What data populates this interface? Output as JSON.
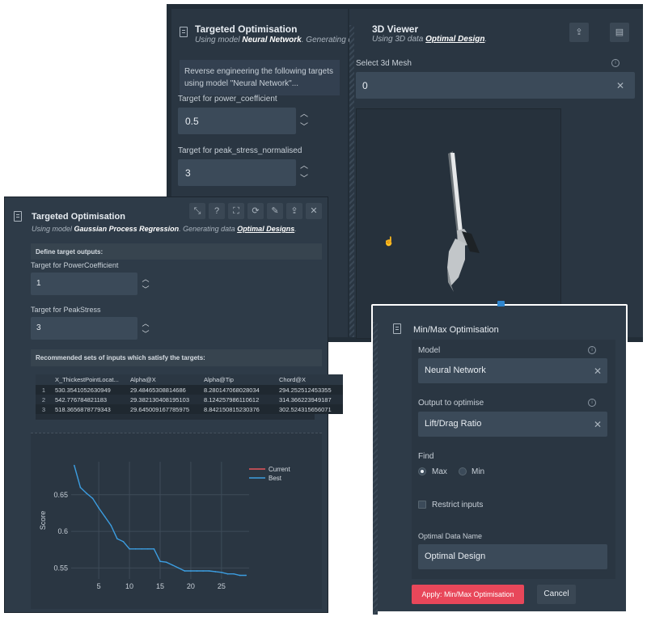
{
  "back_panel": {
    "targeted": {
      "title": "Targeted Optimisation",
      "subtitle_prefix": "Using model",
      "model": "Neural Network",
      "subtitle_suffix": ". Generating d",
      "info_text": "Reverse engineering the following targets using model \"Neural Network\"...",
      "target1_label": "Target for power_coefficient",
      "target1_value": "0.5",
      "target2_label": "Target for peak_stress_normalised",
      "target2_value": "3"
    },
    "viewer": {
      "title": "3D Viewer",
      "subtitle_prefix": "Using 3D data",
      "data_name": "Optimal Design",
      "subtitle_suffix": ".",
      "mesh_label": "Select 3d Mesh",
      "mesh_value": "0"
    }
  },
  "front_panel": {
    "title": "Targeted Optimisation",
    "subtitle_prefix": "Using model",
    "model": "Gaussian Process Regression",
    "subtitle_mid": ". Generating data",
    "data_name": "Optimal Designs",
    "subtitle_suffix": ".",
    "define_header": "Define target outputs:",
    "target1_label": "Target for PowerCoefficient",
    "target1_value": "1",
    "target2_label": "Target for PeakStress",
    "target2_value": "3",
    "recommended_header": "Recommended sets of inputs which satisfy the targets:",
    "table": {
      "columns": [
        "",
        "X_ThickestPointLocat...",
        "Alpha@X",
        "Alpha@Tip",
        "Chord@X"
      ],
      "rows": [
        [
          "1",
          "530.3541052630949",
          "29.48465308814686",
          "8.280147068028034",
          "294.252512453355"
        ],
        [
          "2",
          "542.776784821183",
          "29.382130408195103",
          "8.124257986110612",
          "314.366223949187"
        ],
        [
          "3",
          "518.3656878779343",
          "29.645009167785975",
          "8.842150815230376",
          "302.524315656071"
        ]
      ]
    }
  },
  "minmax_panel": {
    "title": "Min/Max Optimisation",
    "model_label": "Model",
    "model_value": "Neural Network",
    "output_label": "Output to optimise",
    "output_value": "Lift/Drag Ratio",
    "find_label": "Find",
    "find_max": "Max",
    "find_min": "Min",
    "restrict_label": "Restrict inputs",
    "data_name_label": "Optimal Data Name",
    "data_name_value": "Optimal Design",
    "apply_label": "Apply: Min/Max Optimisation",
    "cancel_label": "Cancel"
  },
  "chart_data": {
    "type": "line",
    "ylabel": "Score",
    "xlabel": "",
    "xlim": [
      0.5,
      29.5
    ],
    "ylim": [
      0.535,
      0.695
    ],
    "xticks": [
      5,
      10,
      15,
      20,
      25
    ],
    "yticks": [
      0.55,
      0.6,
      0.65
    ],
    "ytick_labels": [
      "0.55",
      "0.6",
      "0.65"
    ],
    "legend_position": "top-right",
    "series": [
      {
        "name": "Current",
        "color": "#e8555a",
        "x": [],
        "y": []
      },
      {
        "name": "Best",
        "color": "#3c9de0",
        "x": [
          1,
          2,
          3,
          4,
          5,
          6,
          7,
          8,
          9,
          10,
          11,
          12,
          13,
          14,
          15,
          16,
          17,
          18,
          19,
          20,
          21,
          22,
          23,
          24,
          25,
          26,
          27,
          28,
          29
        ],
        "y": [
          0.69,
          0.66,
          0.652,
          0.645,
          0.632,
          0.62,
          0.608,
          0.59,
          0.586,
          0.576,
          0.576,
          0.576,
          0.576,
          0.576,
          0.559,
          0.558,
          0.554,
          0.55,
          0.546,
          0.546,
          0.546,
          0.546,
          0.546,
          0.545,
          0.544,
          0.542,
          0.542,
          0.54,
          0.54
        ]
      }
    ]
  },
  "colors": {
    "panel_bg": "#2e3b48",
    "panel_dark": "#253039",
    "input_bg": "#3b4a59",
    "accent_blue": "#2f86cf",
    "apply_red": "#e8475a"
  }
}
